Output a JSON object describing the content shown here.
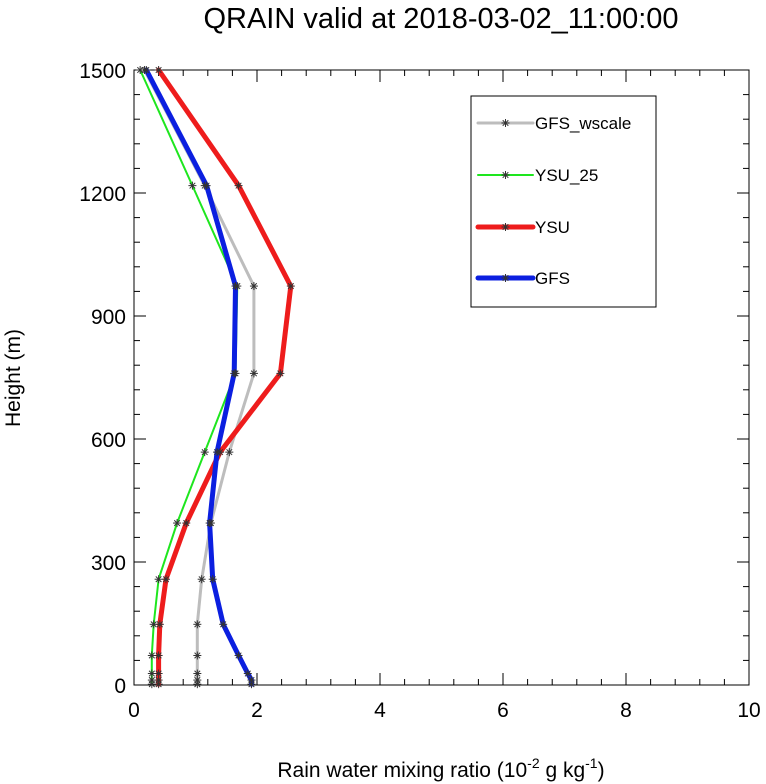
{
  "chart_data": {
    "type": "line",
    "title": "QRAIN valid at 2018-03-02_11:00:00",
    "xlabel": "Rain water mixing ratio (10",
    "xlabel_exp1": "-2",
    "xlabel_mid": " g kg",
    "xlabel_exp2": "-1",
    "xlabel_end": ")",
    "ylabel": "Height (m)",
    "xlim": [
      0,
      10
    ],
    "ylim": [
      0,
      1500
    ],
    "xticks": [
      0,
      2,
      4,
      6,
      8,
      10
    ],
    "xtick_labels": [
      "0",
      "2",
      "4",
      "6",
      "8",
      "10"
    ],
    "yticks": [
      0,
      300,
      600,
      900,
      1200,
      1500
    ],
    "ytick_labels": [
      "0",
      "300",
      "600",
      "900",
      "1200",
      "1500"
    ],
    "heights": [
      2,
      12,
      28,
      72,
      148,
      258,
      395,
      568,
      760,
      973,
      1218,
      1500
    ],
    "legend_position": "top-right",
    "series": [
      {
        "name": "GFS_wscale",
        "color": "#bdbdbd",
        "width": 3,
        "x": [
          1.03,
          1.03,
          1.03,
          1.03,
          1.03,
          1.1,
          1.25,
          1.55,
          1.95,
          1.95,
          1.15,
          0.17
        ]
      },
      {
        "name": "YSU_25",
        "color": "#1ee61e",
        "width": 2,
        "x": [
          0.29,
          0.29,
          0.29,
          0.29,
          0.32,
          0.4,
          0.7,
          1.15,
          1.65,
          1.68,
          0.95,
          0.1
        ]
      },
      {
        "name": "YSU",
        "color": "#ee1c1c",
        "width": 5,
        "x": [
          0.4,
          0.4,
          0.4,
          0.4,
          0.42,
          0.52,
          0.85,
          1.4,
          2.38,
          2.55,
          1.7,
          0.4
        ]
      },
      {
        "name": "GFS",
        "color": "#0b1fe0",
        "width": 5,
        "x": [
          1.91,
          1.91,
          1.85,
          1.7,
          1.45,
          1.28,
          1.23,
          1.35,
          1.63,
          1.65,
          1.18,
          0.2
        ]
      }
    ]
  }
}
